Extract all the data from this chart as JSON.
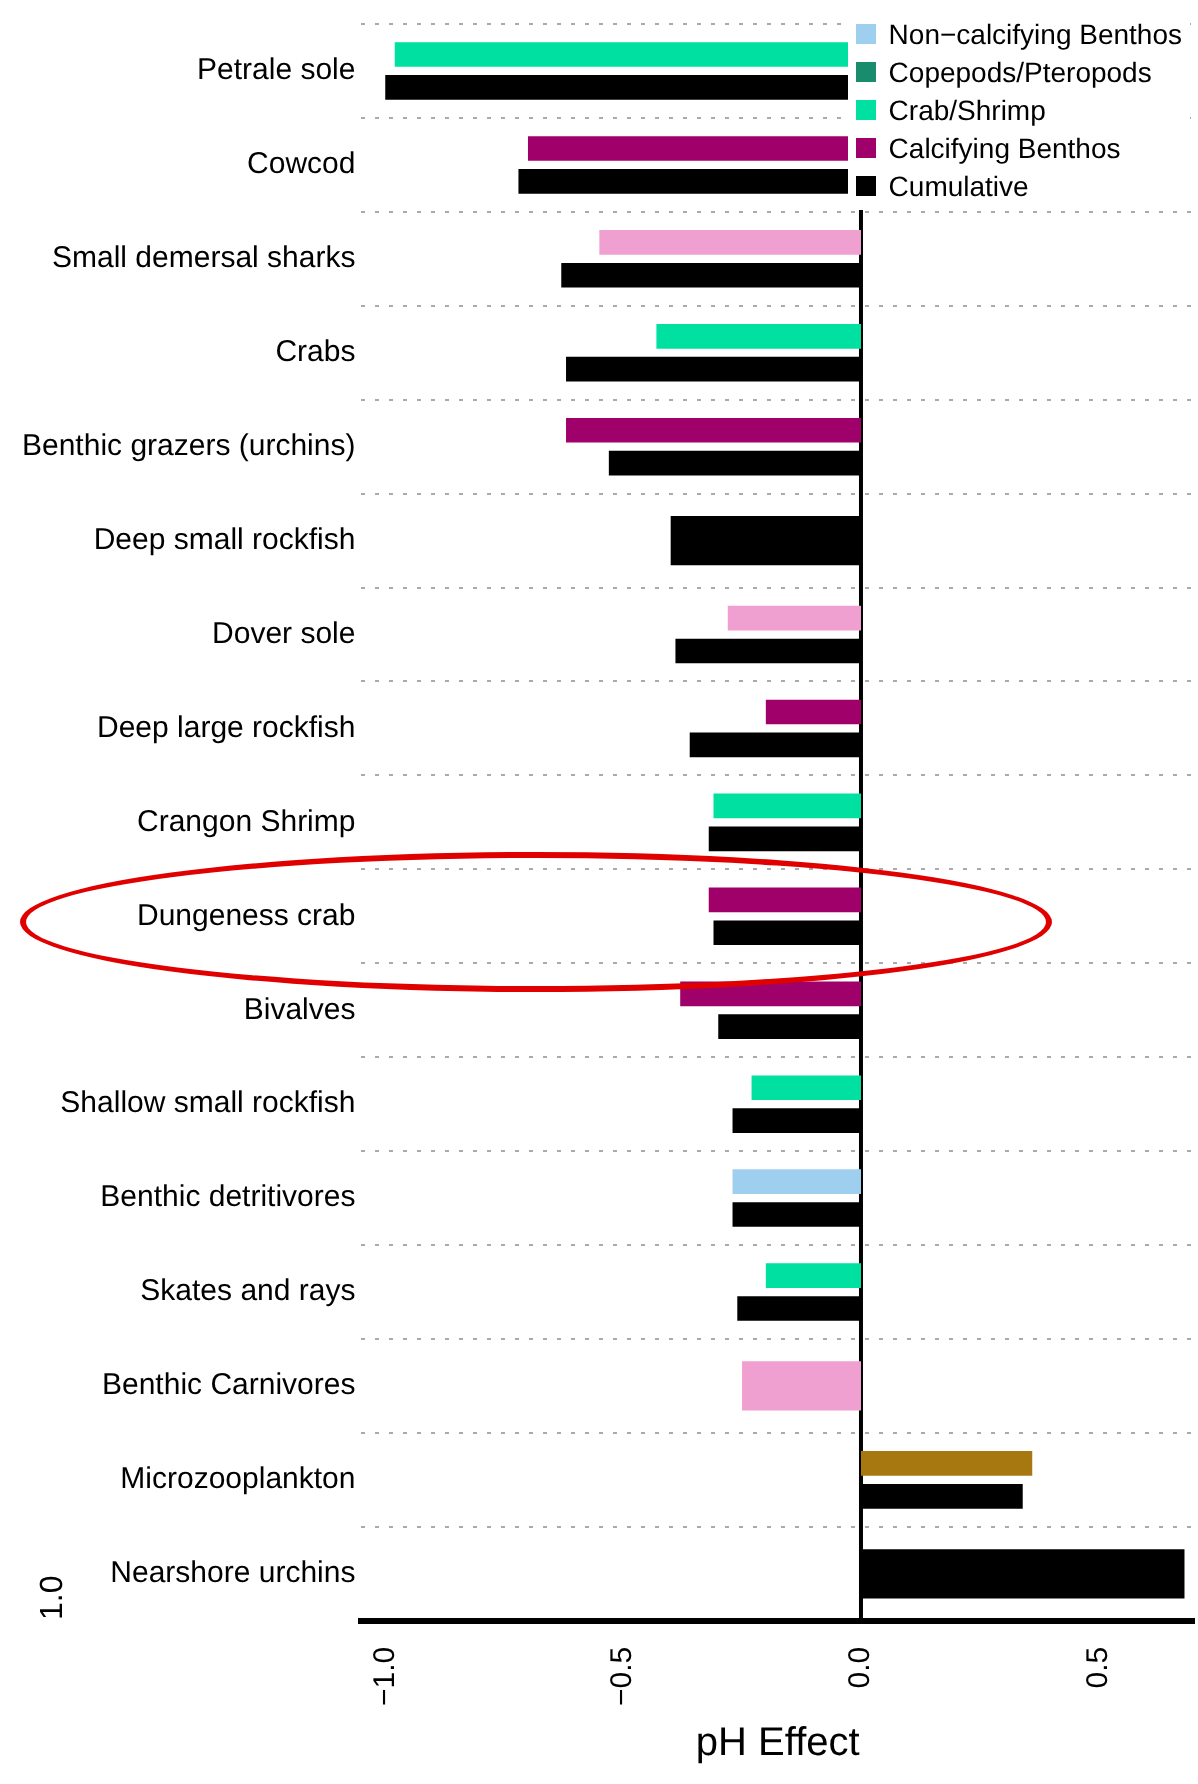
{
  "chart_data": {
    "type": "bar",
    "orientation": "horizontal",
    "xlabel": "pH Effect",
    "categories": [
      "Petrale sole",
      "Cowcod",
      "Small demersal sharks",
      "Crabs",
      "Benthic grazers (urchins)",
      "Deep small rockfish",
      "Dover sole",
      "Deep large rockfish",
      "Crangon Shrimp",
      "Dungeness crab",
      "Bivalves",
      "Shallow small rockfish",
      "Benthic detritivores",
      "Skates and rays",
      "Benthic Carnivores",
      "Microzooplankton",
      "Nearshore urchins"
    ],
    "series": [
      {
        "name": "Non−calcifying Benthos",
        "color": "#9fcfef",
        "values": [
          null,
          null,
          null,
          null,
          null,
          null,
          null,
          null,
          null,
          null,
          null,
          null,
          -0.27,
          null,
          null,
          null,
          null
        ]
      },
      {
        "name": "Copepods/Pteropods",
        "color": "#1a8c6e",
        "values": [
          null,
          null,
          null,
          null,
          null,
          null,
          null,
          null,
          null,
          null,
          null,
          null,
          null,
          null,
          null,
          null,
          null
        ]
      },
      {
        "name": "Crab/Shrimp",
        "color": "#00e0a0",
        "values": [
          -0.98,
          null,
          null,
          -0.43,
          null,
          null,
          null,
          null,
          -0.31,
          null,
          null,
          -0.23,
          null,
          -0.2,
          null,
          null,
          null
        ]
      },
      {
        "name": "Calcifying Benthos",
        "color": "#a0006a",
        "values": [
          null,
          -0.7,
          null,
          null,
          -0.62,
          null,
          null,
          -0.2,
          null,
          -0.32,
          -0.38,
          null,
          null,
          null,
          null,
          null,
          null
        ]
      },
      {
        "color": "#f0a0d0",
        "values": [
          null,
          null,
          -0.55,
          null,
          null,
          null,
          -0.28,
          null,
          null,
          null,
          null,
          null,
          null,
          null,
          -0.25,
          null,
          null
        ]
      },
      {
        "color": "#a87810",
        "values": [
          null,
          null,
          null,
          null,
          null,
          null,
          null,
          null,
          null,
          null,
          null,
          null,
          null,
          null,
          null,
          0.36,
          null
        ]
      },
      {
        "name": "Cumulative",
        "color": "#000000",
        "values": [
          -1.0,
          -0.72,
          -0.63,
          -0.62,
          -0.53,
          -0.4,
          -0.39,
          -0.36,
          -0.32,
          -0.31,
          -0.3,
          -0.27,
          -0.27,
          -0.26,
          null,
          0.34,
          0.68
        ]
      }
    ],
    "xlim": [
      -1.05,
      0.7
    ],
    "xticks": [
      {
        "value": -1.0,
        "label": "−1.0"
      },
      {
        "value": -0.5,
        "label": "−0.5"
      },
      {
        "value": 0,
        "label": "0.0"
      },
      {
        "value": 0.5,
        "label": "0.5"
      }
    ],
    "ref_lines": [
      {
        "axis": "x",
        "value": 0,
        "color": "#000000"
      }
    ],
    "grid": "y",
    "legend": "top right",
    "annotations": [
      "1.0"
    ]
  }
}
